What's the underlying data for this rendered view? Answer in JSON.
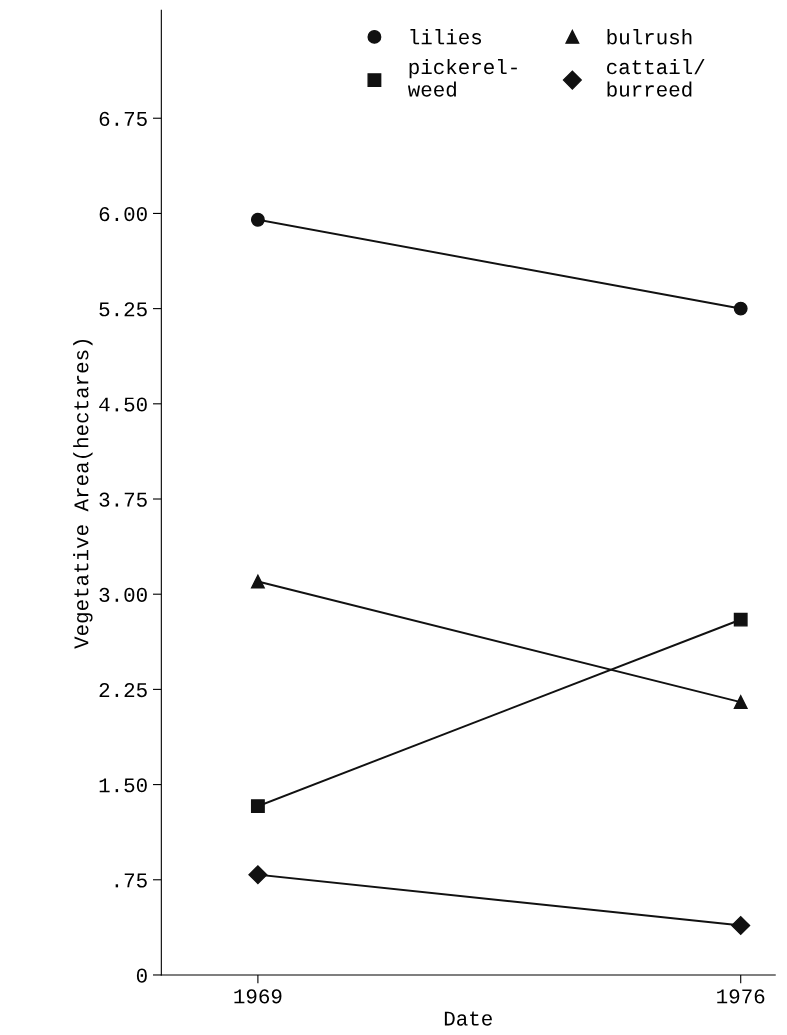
{
  "chart_data": {
    "type": "line",
    "xlabel": "Date",
    "ylabel": "Vegetative Area(hectares)",
    "x": [
      1969,
      1976
    ],
    "series": [
      {
        "name": "lilies",
        "color": "#111111",
        "marker": "circle",
        "values": [
          5.95,
          5.25
        ]
      },
      {
        "name": "pickerel-\nweed",
        "color": "#111111",
        "marker": "square",
        "values": [
          1.33,
          2.8
        ]
      },
      {
        "name": "bulrush",
        "color": "#111111",
        "marker": "triangle",
        "values": [
          3.1,
          2.15
        ]
      },
      {
        "name": "cattail/\nburreed",
        "color": "#111111",
        "marker": "diamond",
        "values": [
          0.79,
          0.39
        ]
      }
    ],
    "xlim": [
      1967.6,
      1976.5
    ],
    "xticks": [
      1969,
      1976
    ],
    "ylim": [
      0,
      7.6
    ],
    "yticks": [
      0,
      {
        "value": 0.75,
        "label": ".75"
      },
      {
        "value": 1.5,
        "label": "1.50"
      },
      {
        "value": 2.25,
        "label": "2.25"
      },
      {
        "value": 3.0,
        "label": "3.00"
      },
      {
        "value": 3.75,
        "label": "3.75"
      },
      {
        "value": 4.5,
        "label": "4.50"
      },
      {
        "value": 5.25,
        "label": "5.25"
      },
      {
        "value": 6.0,
        "label": "6.00"
      },
      {
        "value": 6.75,
        "label": "6.75"
      }
    ],
    "grid": false,
    "legend": "top",
    "line_style": "solid"
  }
}
